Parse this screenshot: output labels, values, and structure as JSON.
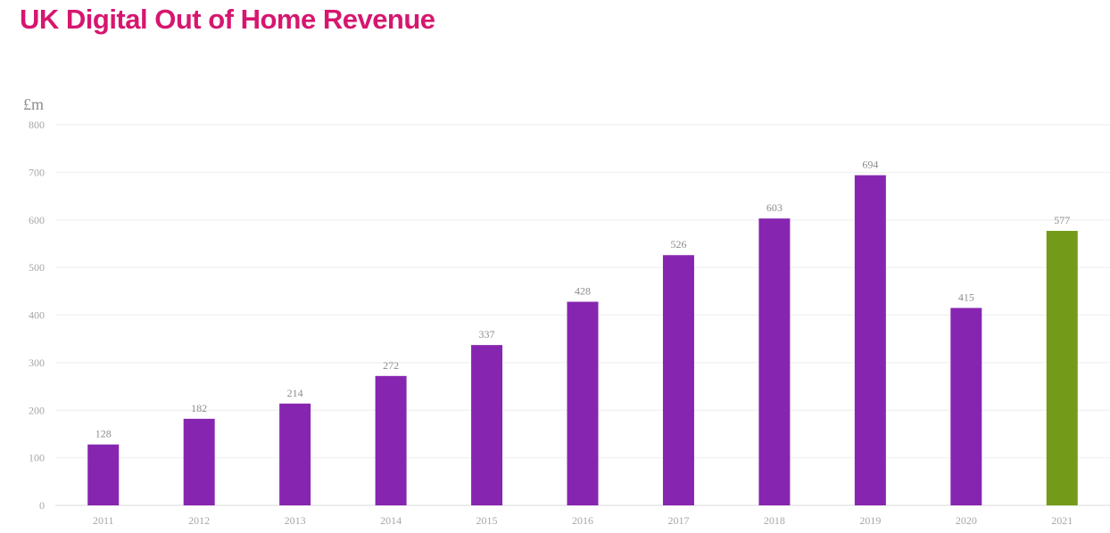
{
  "header": {
    "title": "UK Digital Out of Home Revenue"
  },
  "colors": {
    "title": "#d6166f",
    "bar_default": "#8626b0",
    "bar_highlight": "#749a1a",
    "grid": "#eeeeee",
    "axis": "#d9d9d9"
  },
  "chart_data": {
    "type": "bar",
    "title": "UK Digital Out of Home Revenue",
    "ylabel": "£m",
    "xlabel": "",
    "categories": [
      "2011",
      "2012",
      "2013",
      "2014",
      "2015",
      "2016",
      "2017",
      "2018",
      "2019",
      "2020",
      "2021"
    ],
    "values": [
      128,
      182,
      214,
      272,
      337,
      428,
      526,
      603,
      694,
      415,
      577
    ],
    "highlight_category": "2021",
    "ylim": [
      0,
      800
    ],
    "yticks": [
      0,
      100,
      200,
      300,
      400,
      500,
      600,
      700,
      800
    ],
    "grid": true,
    "legend": "none",
    "data_labels": true
  }
}
